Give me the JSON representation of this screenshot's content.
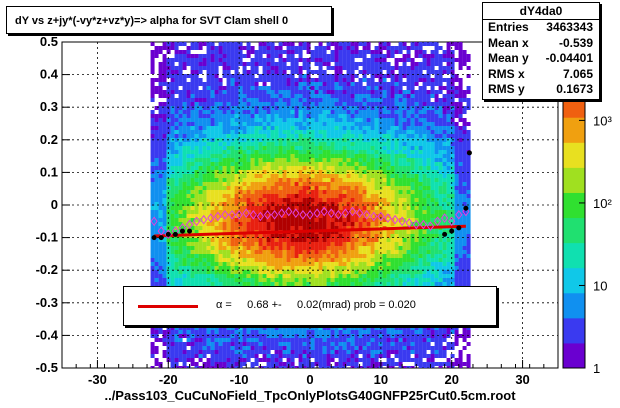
{
  "title": "dY vs  z+jy*(-vy*z+vz*y)=> alpha for SVT Clam shell 0",
  "stats": {
    "name": "dY4da0",
    "rows": [
      {
        "label": "Entries",
        "value": "3463343"
      },
      {
        "label": "Mean x",
        "value": "-0.539"
      },
      {
        "label": "Mean y",
        "value": "-0.04401"
      },
      {
        "label": "RMS x",
        "value": "7.065"
      },
      {
        "label": "RMS y",
        "value": "0.1673"
      }
    ]
  },
  "fit": {
    "symbol": "α =",
    "text": "0.68 +-     0.02(mrad) prob = 0.020"
  },
  "chart_data": {
    "type": "heatmap",
    "xlabel": "../Pass103_CuCuNoField_TpcOnlyPlotsG40GNFP25rCut0.5cm.root",
    "xlim": [
      -35,
      35
    ],
    "ylim": [
      -0.5,
      0.5
    ],
    "x_ticks": [
      -30,
      -20,
      -10,
      0,
      10,
      20,
      30
    ],
    "y_ticks": [
      -0.5,
      -0.4,
      -0.3,
      -0.2,
      -0.1,
      0,
      0.1,
      0.2,
      0.3,
      0.4,
      0.5
    ],
    "x_tick_labels": [
      "-30",
      "-20",
      "-10",
      "0",
      "10",
      "20",
      "30"
    ],
    "y_tick_labels": [
      "-0.5",
      "-0.4",
      "-0.3",
      "-0.2",
      "-0.1",
      "0",
      "0.1",
      "0.2",
      "0.3",
      "0.4",
      "0.5"
    ],
    "z_scale": "log",
    "z_ticks": [
      1,
      10,
      100,
      1000
    ],
    "z_tick_labels": [
      "1",
      "10",
      "10²",
      "10³"
    ],
    "data_x_range": [
      -22.5,
      22.5
    ],
    "peak": {
      "x": -1.5,
      "y": -0.04
    },
    "grid": true,
    "fit_line": {
      "x": [
        -22,
        22
      ],
      "y": [
        -0.095,
        -0.065
      ],
      "color": "#dd0000"
    },
    "profile_black": {
      "x": [
        -22,
        -21,
        -20,
        -19,
        -18,
        -17,
        19,
        20,
        21,
        22,
        22.5
      ],
      "y": [
        -0.1,
        -0.1,
        -0.09,
        -0.09,
        -0.08,
        -0.08,
        -0.09,
        -0.08,
        -0.07,
        -0.01,
        0.16
      ]
    },
    "profile_pink": {
      "x": [
        -22,
        -21,
        -20,
        -19,
        -18,
        -17,
        -16,
        -15,
        -14,
        -13,
        -12,
        -11,
        -10,
        -9,
        -8,
        -7,
        -6,
        -5,
        -4,
        -3,
        -2,
        -1,
        0,
        1,
        2,
        3,
        4,
        5,
        6,
        7,
        8,
        9,
        10,
        11,
        12,
        13,
        14,
        15,
        16,
        17,
        18,
        19,
        20,
        21,
        22
      ],
      "y": [
        -0.05,
        -0.08,
        -0.09,
        -0.08,
        -0.07,
        -0.06,
        -0.05,
        -0.045,
        -0.04,
        -0.035,
        -0.03,
        -0.03,
        -0.03,
        -0.025,
        -0.03,
        -0.035,
        -0.03,
        -0.03,
        -0.025,
        -0.02,
        -0.025,
        -0.03,
        -0.03,
        -0.025,
        -0.02,
        -0.025,
        -0.03,
        -0.025,
        -0.02,
        -0.025,
        -0.03,
        -0.035,
        -0.035,
        -0.04,
        -0.045,
        -0.05,
        -0.055,
        -0.06,
        -0.06,
        -0.065,
        -0.05,
        -0.04,
        -0.05,
        -0.03,
        -0.02
      ]
    },
    "palette": [
      "#6a00d0",
      "#3a3af0",
      "#1090f0",
      "#10c8e8",
      "#10e0b0",
      "#20e070",
      "#30e030",
      "#a0e020",
      "#e8e020",
      "#f0a010",
      "#f06010",
      "#e82010",
      "#b00000"
    ]
  }
}
